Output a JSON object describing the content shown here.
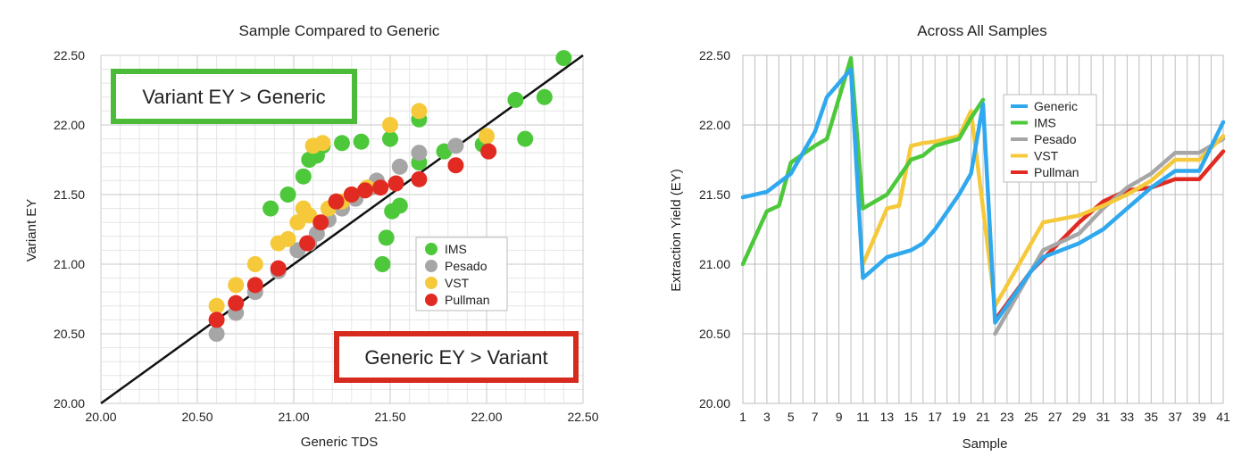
{
  "chart_data": [
    {
      "type": "scatter",
      "title": "Sample Compared to Generic",
      "xlabel": "Generic TDS",
      "ylabel": "Variant EY",
      "xlim": [
        20.0,
        22.5
      ],
      "ylim": [
        20.0,
        22.5
      ],
      "xticks": [
        "20.00",
        "20.50",
        "21.00",
        "21.50",
        "22.00",
        "22.50"
      ],
      "yticks": [
        "20.00",
        "20.50",
        "21.00",
        "21.50",
        "22.00",
        "22.50"
      ],
      "grid": true,
      "reference_line": "y = x",
      "legend_position": "center-right",
      "annotations": {
        "upper": "Variant EY > Generic",
        "lower": "Generic EY > Variant",
        "upper_color": "#4cbb3a",
        "lower_color": "#d62a1e"
      },
      "series": [
        {
          "name": "IMS",
          "color": "#4cc83a",
          "x": [
            20.88,
            20.97,
            21.05,
            21.08,
            21.12,
            21.15,
            21.25,
            21.35,
            21.46,
            21.48,
            21.5,
            21.51,
            21.55,
            21.65,
            21.65,
            21.78,
            21.98,
            22.15,
            22.2,
            22.3,
            22.4
          ],
          "y": [
            21.4,
            21.5,
            21.63,
            21.75,
            21.78,
            21.85,
            21.87,
            21.88,
            21.0,
            21.19,
            21.9,
            21.38,
            21.42,
            21.73,
            22.04,
            21.81,
            21.86,
            22.18,
            21.9,
            22.2,
            22.48
          ]
        },
        {
          "name": "Pesado",
          "color": "#a6a6a6",
          "x": [
            20.6,
            20.7,
            20.8,
            20.92,
            21.02,
            21.08,
            21.12,
            21.18,
            21.25,
            21.32,
            21.4,
            21.43,
            21.55,
            21.65,
            21.84
          ],
          "y": [
            20.5,
            20.65,
            20.8,
            20.95,
            21.1,
            21.15,
            21.22,
            21.32,
            21.4,
            21.47,
            21.55,
            21.6,
            21.7,
            21.8,
            21.85
          ]
        },
        {
          "name": "VST",
          "color": "#f5c93a",
          "x": [
            20.6,
            20.7,
            20.8,
            20.92,
            20.97,
            21.02,
            21.05,
            21.08,
            21.1,
            21.15,
            21.18,
            21.25,
            21.3,
            21.38,
            21.5,
            21.65,
            22.0
          ],
          "y": [
            20.7,
            20.85,
            21.0,
            21.15,
            21.18,
            21.3,
            21.4,
            21.35,
            21.85,
            21.87,
            21.4,
            21.45,
            21.5,
            21.55,
            22.0,
            22.1,
            21.92
          ]
        },
        {
          "name": "Pullman",
          "color": "#e02a22",
          "x": [
            20.6,
            20.7,
            20.8,
            20.92,
            21.07,
            21.14,
            21.22,
            21.3,
            21.37,
            21.45,
            21.53,
            21.65,
            21.84,
            22.01
          ],
          "y": [
            20.6,
            20.72,
            20.85,
            20.97,
            21.15,
            21.3,
            21.45,
            21.5,
            21.53,
            21.55,
            21.58,
            21.61,
            21.71,
            21.81
          ]
        }
      ]
    },
    {
      "type": "line",
      "title": "Across All Samples",
      "xlabel": "Sample",
      "ylabel": "Extraction Yield (EY)",
      "ylim": [
        20.0,
        22.5
      ],
      "yticks": [
        "20.00",
        "20.50",
        "21.00",
        "21.50",
        "22.00",
        "22.50"
      ],
      "xticks": [
        "1",
        "3",
        "5",
        "7",
        "9",
        "11",
        "13",
        "15",
        "17",
        "19",
        "21",
        "23",
        "25",
        "27",
        "29",
        "31",
        "33",
        "35",
        "37",
        "39",
        "41"
      ],
      "grid": true,
      "legend_position": "top-center",
      "series": [
        {
          "name": "Generic",
          "color": "#2fa8ee",
          "x": [
            1,
            3,
            5,
            7,
            8,
            10,
            11,
            13,
            15,
            16,
            17,
            19,
            20,
            21,
            22,
            25,
            26,
            29,
            31,
            33,
            35,
            37,
            39,
            41
          ],
          "y": [
            21.48,
            21.52,
            21.65,
            21.95,
            22.2,
            22.4,
            20.9,
            21.05,
            21.1,
            21.15,
            21.25,
            21.5,
            21.65,
            22.15,
            20.58,
            20.95,
            21.05,
            21.15,
            21.25,
            21.4,
            21.55,
            21.67,
            21.67,
            22.02
          ]
        },
        {
          "name": "IMS",
          "color": "#4cc83a",
          "x": [
            1,
            3,
            4,
            5,
            7,
            8,
            10,
            11,
            13,
            15,
            16,
            17,
            19,
            20,
            21
          ],
          "y": [
            21.0,
            21.38,
            21.42,
            21.73,
            21.85,
            21.9,
            22.48,
            21.4,
            21.5,
            21.75,
            21.78,
            21.85,
            21.9,
            22.05,
            22.18
          ]
        },
        {
          "name": "Pesado",
          "color": "#a6a6a6",
          "x": [
            22,
            23,
            25,
            26,
            29,
            31,
            33,
            35,
            37,
            39,
            41
          ],
          "y": [
            20.5,
            20.65,
            20.95,
            21.1,
            21.22,
            21.4,
            21.55,
            21.65,
            21.8,
            21.8,
            21.9
          ]
        },
        {
          "name": "VST",
          "color": "#f5c93a",
          "x": [
            11,
            13,
            14,
            15,
            16,
            17,
            19,
            20,
            22,
            26,
            29,
            31,
            33,
            35,
            37,
            39,
            41
          ],
          "y": [
            21.0,
            21.4,
            21.42,
            21.85,
            21.87,
            21.88,
            21.92,
            22.1,
            20.7,
            21.3,
            21.35,
            21.42,
            21.5,
            21.6,
            21.75,
            21.75,
            21.92
          ]
        },
        {
          "name": "Pullman",
          "color": "#e02a22",
          "x": [
            22,
            25,
            29,
            31,
            33,
            35,
            37,
            39,
            41
          ],
          "y": [
            20.6,
            20.95,
            21.3,
            21.45,
            21.53,
            21.55,
            21.61,
            21.61,
            21.81
          ]
        }
      ]
    }
  ]
}
